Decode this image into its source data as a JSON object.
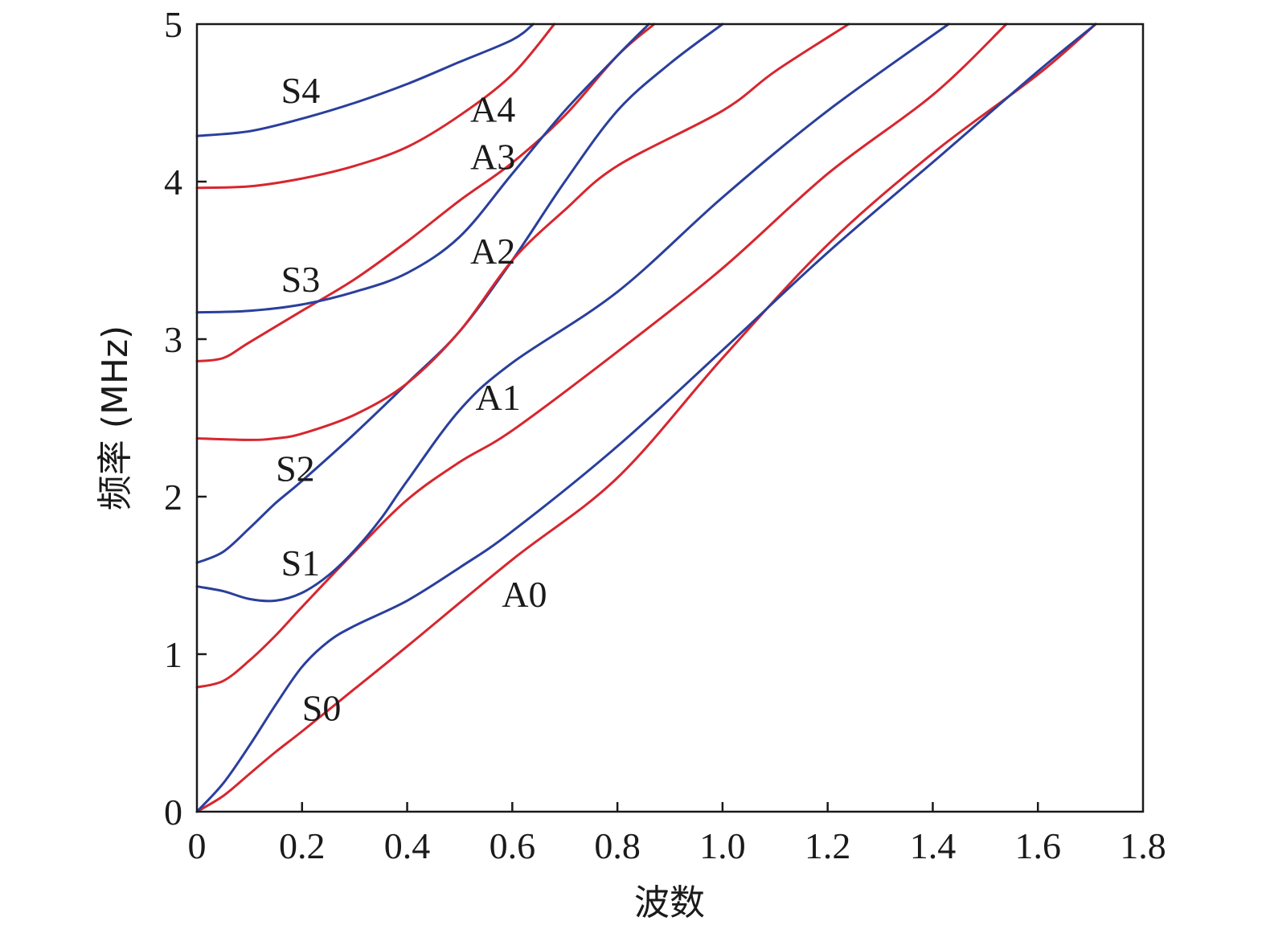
{
  "chart_data": {
    "type": "line",
    "title": "",
    "xlabel": "波数",
    "ylabel": "频率 (MHz)",
    "xlim": [
      0,
      1.8
    ],
    "ylim": [
      0,
      5
    ],
    "x_ticks": [
      0,
      0.2,
      0.4,
      0.6,
      0.8,
      1.0,
      1.2,
      1.4,
      1.6,
      1.8
    ],
    "x_tick_labels": [
      "0",
      "0.2",
      "0.4",
      "0.6",
      "0.8",
      "1.0",
      "1.2",
      "1.4",
      "1.6",
      "1.8"
    ],
    "y_ticks": [
      0,
      1,
      2,
      3,
      4,
      5
    ],
    "y_tick_labels": [
      "0",
      "1",
      "2",
      "3",
      "4",
      "5"
    ],
    "grid": false,
    "colors": {
      "symmetric": "#2a3f9c",
      "antisymmetric": "#d7262e"
    },
    "series": [
      {
        "name": "A0",
        "color": "#d7262e",
        "label_at": [
          0.58,
          1.3
        ],
        "points": [
          [
            0,
            0
          ],
          [
            0.05,
            0.1
          ],
          [
            0.1,
            0.24
          ],
          [
            0.15,
            0.38
          ],
          [
            0.2,
            0.51
          ],
          [
            0.3,
            0.78
          ],
          [
            0.4,
            1.05
          ],
          [
            0.6,
            1.6
          ],
          [
            0.8,
            2.12
          ],
          [
            1.0,
            2.88
          ],
          [
            1.2,
            3.6
          ],
          [
            1.4,
            4.18
          ],
          [
            1.6,
            4.68
          ],
          [
            1.71,
            5.0
          ]
        ]
      },
      {
        "name": "S0",
        "color": "#2a3f9c",
        "label_at": [
          0.2,
          0.58
        ],
        "points": [
          [
            0,
            0
          ],
          [
            0.05,
            0.18
          ],
          [
            0.1,
            0.42
          ],
          [
            0.15,
            0.68
          ],
          [
            0.2,
            0.92
          ],
          [
            0.25,
            1.08
          ],
          [
            0.3,
            1.18
          ],
          [
            0.4,
            1.34
          ],
          [
            0.5,
            1.55
          ],
          [
            0.6,
            1.78
          ],
          [
            0.8,
            2.32
          ],
          [
            1.0,
            2.93
          ],
          [
            1.2,
            3.55
          ],
          [
            1.42,
            4.18
          ],
          [
            1.6,
            4.7
          ],
          [
            1.71,
            5.0
          ]
        ]
      },
      {
        "name": "A1",
        "color": "#d7262e",
        "label_at": [
          0.53,
          2.55
        ],
        "points": [
          [
            0,
            0.79
          ],
          [
            0.05,
            0.83
          ],
          [
            0.1,
            0.96
          ],
          [
            0.15,
            1.12
          ],
          [
            0.2,
            1.3
          ],
          [
            0.3,
            1.65
          ],
          [
            0.4,
            1.98
          ],
          [
            0.5,
            2.22
          ],
          [
            0.6,
            2.42
          ],
          [
            0.8,
            2.92
          ],
          [
            1.0,
            3.45
          ],
          [
            1.2,
            4.05
          ],
          [
            1.4,
            4.55
          ],
          [
            1.54,
            5.0
          ]
        ]
      },
      {
        "name": "S1",
        "color": "#2a3f9c",
        "label_at": [
          0.16,
          1.5
        ],
        "points": [
          [
            0,
            1.43
          ],
          [
            0.05,
            1.4
          ],
          [
            0.1,
            1.35
          ],
          [
            0.15,
            1.34
          ],
          [
            0.2,
            1.39
          ],
          [
            0.25,
            1.5
          ],
          [
            0.3,
            1.66
          ],
          [
            0.35,
            1.86
          ],
          [
            0.4,
            2.1
          ],
          [
            0.5,
            2.55
          ],
          [
            0.6,
            2.85
          ],
          [
            0.8,
            3.3
          ],
          [
            1.0,
            3.9
          ],
          [
            1.2,
            4.45
          ],
          [
            1.43,
            5.0
          ]
        ]
      },
      {
        "name": "S2",
        "color": "#2a3f9c",
        "label_at": [
          0.15,
          2.1
        ],
        "points": [
          [
            0,
            1.58
          ],
          [
            0.05,
            1.65
          ],
          [
            0.1,
            1.8
          ],
          [
            0.15,
            1.96
          ],
          [
            0.2,
            2.1
          ],
          [
            0.3,
            2.4
          ],
          [
            0.4,
            2.72
          ],
          [
            0.5,
            3.05
          ],
          [
            0.6,
            3.5
          ],
          [
            0.7,
            4.0
          ],
          [
            0.8,
            4.45
          ],
          [
            0.9,
            4.75
          ],
          [
            1.0,
            5.0
          ]
        ]
      },
      {
        "name": "A2",
        "color": "#d7262e",
        "label_at": [
          0.52,
          3.48
        ],
        "points": [
          [
            0,
            2.37
          ],
          [
            0.1,
            2.36
          ],
          [
            0.15,
            2.37
          ],
          [
            0.2,
            2.4
          ],
          [
            0.3,
            2.52
          ],
          [
            0.4,
            2.72
          ],
          [
            0.5,
            3.05
          ],
          [
            0.6,
            3.5
          ],
          [
            0.7,
            3.82
          ],
          [
            0.8,
            4.1
          ],
          [
            1.0,
            4.45
          ],
          [
            1.1,
            4.7
          ],
          [
            1.24,
            5.0
          ]
        ]
      },
      {
        "name": "A3",
        "color": "#d7262e",
        "label_at": [
          0.52,
          4.08
        ],
        "points": [
          [
            0,
            2.86
          ],
          [
            0.05,
            2.88
          ],
          [
            0.1,
            2.98
          ],
          [
            0.2,
            3.18
          ],
          [
            0.3,
            3.38
          ],
          [
            0.4,
            3.62
          ],
          [
            0.5,
            3.88
          ],
          [
            0.6,
            4.12
          ],
          [
            0.7,
            4.42
          ],
          [
            0.8,
            4.8
          ],
          [
            0.87,
            5.0
          ]
        ]
      },
      {
        "name": "S3",
        "color": "#2a3f9c",
        "label_at": [
          0.16,
          3.3
        ],
        "points": [
          [
            0,
            3.17
          ],
          [
            0.1,
            3.18
          ],
          [
            0.2,
            3.22
          ],
          [
            0.3,
            3.3
          ],
          [
            0.4,
            3.42
          ],
          [
            0.5,
            3.65
          ],
          [
            0.6,
            4.05
          ],
          [
            0.7,
            4.45
          ],
          [
            0.8,
            4.8
          ],
          [
            0.86,
            5.0
          ]
        ]
      },
      {
        "name": "A4",
        "color": "#d7262e",
        "label_at": [
          0.52,
          4.38
        ],
        "points": [
          [
            0,
            3.96
          ],
          [
            0.1,
            3.97
          ],
          [
            0.2,
            4.02
          ],
          [
            0.3,
            4.1
          ],
          [
            0.4,
            4.22
          ],
          [
            0.5,
            4.42
          ],
          [
            0.6,
            4.68
          ],
          [
            0.68,
            5.0
          ]
        ]
      },
      {
        "name": "S4",
        "color": "#2a3f9c",
        "label_at": [
          0.16,
          4.5
        ],
        "points": [
          [
            0,
            4.29
          ],
          [
            0.1,
            4.32
          ],
          [
            0.2,
            4.4
          ],
          [
            0.3,
            4.5
          ],
          [
            0.4,
            4.62
          ],
          [
            0.5,
            4.76
          ],
          [
            0.6,
            4.9
          ],
          [
            0.64,
            5.0
          ]
        ]
      }
    ]
  }
}
